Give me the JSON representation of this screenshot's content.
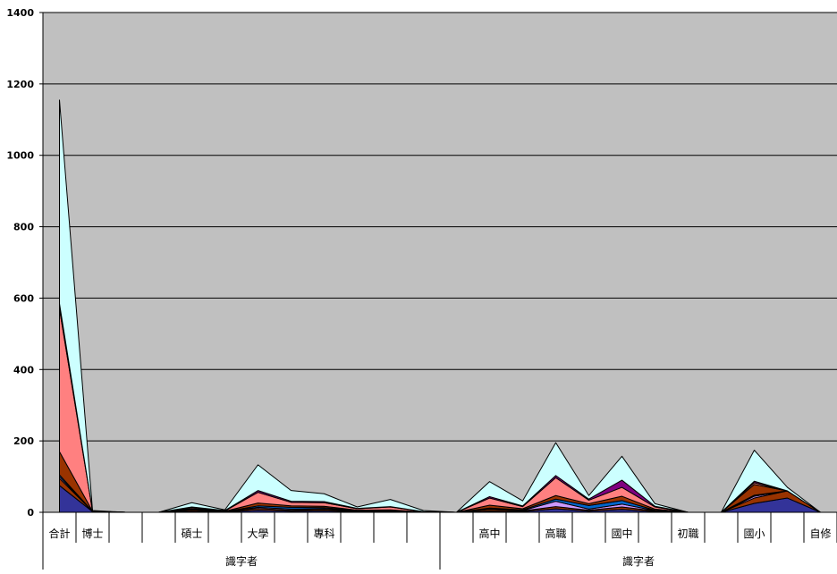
{
  "chart_data": {
    "type": "area",
    "title": "",
    "xlabel": "",
    "ylabel": "",
    "ylim": [
      0,
      1400
    ],
    "yticks": [
      0,
      200,
      400,
      600,
      800,
      1000,
      1200,
      1400
    ],
    "grid": true,
    "plot_background": "#c0c0c0",
    "tick_labels": [
      "合計",
      "博士",
      "",
      "",
      "碩士",
      "",
      "大學",
      "",
      "專科",
      "",
      "",
      "",
      "",
      "高中",
      "",
      "高職",
      "",
      "國中",
      "",
      "初職",
      "",
      "國小",
      "",
      "自修"
    ],
    "groups": [
      {
        "label": "識字者",
        "start": 0,
        "end": 12
      },
      {
        "label": "識字者",
        "start": 12,
        "end": 24
      }
    ],
    "x_count": 24,
    "series": [
      {
        "color": "#333399",
        "values": [
          75,
          2,
          0,
          0,
          3,
          1,
          6,
          3,
          4,
          2,
          2,
          1,
          0,
          3,
          2,
          10,
          3,
          8,
          2,
          0,
          0,
          25,
          40,
          0
        ]
      },
      {
        "color": "#993300",
        "values": [
          20,
          1,
          0,
          0,
          4,
          1,
          5,
          3,
          4,
          1,
          1,
          0,
          0,
          5,
          2,
          6,
          3,
          7,
          2,
          0,
          0,
          15,
          20,
          0
        ]
      },
      {
        "color": "#cc99ff",
        "values": [
          5,
          0,
          0,
          0,
          1,
          0,
          3,
          3,
          2,
          1,
          1,
          0,
          0,
          2,
          1,
          15,
          3,
          8,
          1,
          0,
          0,
          5,
          0,
          0
        ]
      },
      {
        "color": "#0066cc",
        "values": [
          5,
          0,
          0,
          0,
          1,
          0,
          4,
          5,
          3,
          1,
          1,
          0,
          0,
          2,
          2,
          6,
          10,
          10,
          1,
          0,
          0,
          3,
          0,
          0
        ]
      },
      {
        "color": "#993300",
        "values": [
          65,
          0,
          0,
          0,
          2,
          1,
          8,
          4,
          4,
          1,
          2,
          0,
          0,
          8,
          3,
          10,
          5,
          12,
          3,
          0,
          0,
          30,
          0,
          0
        ]
      },
      {
        "color": "#ff8080",
        "values": [
          400,
          0,
          0,
          0,
          3,
          1,
          30,
          10,
          10,
          4,
          8,
          1,
          0,
          20,
          6,
          50,
          10,
          25,
          6,
          0,
          0,
          5,
          0,
          0
        ]
      },
      {
        "color": "#800080",
        "values": [
          15,
          0,
          0,
          0,
          1,
          1,
          5,
          3,
          3,
          1,
          1,
          0,
          0,
          4,
          2,
          6,
          3,
          20,
          2,
          0,
          0,
          4,
          0,
          0
        ]
      },
      {
        "color": "#ccffff",
        "values": [
          570,
          2,
          0,
          0,
          12,
          2,
          72,
          30,
          22,
          4,
          20,
          3,
          0,
          42,
          14,
          92,
          10,
          67,
          7,
          0,
          0,
          87,
          10,
          0
        ]
      }
    ]
  }
}
